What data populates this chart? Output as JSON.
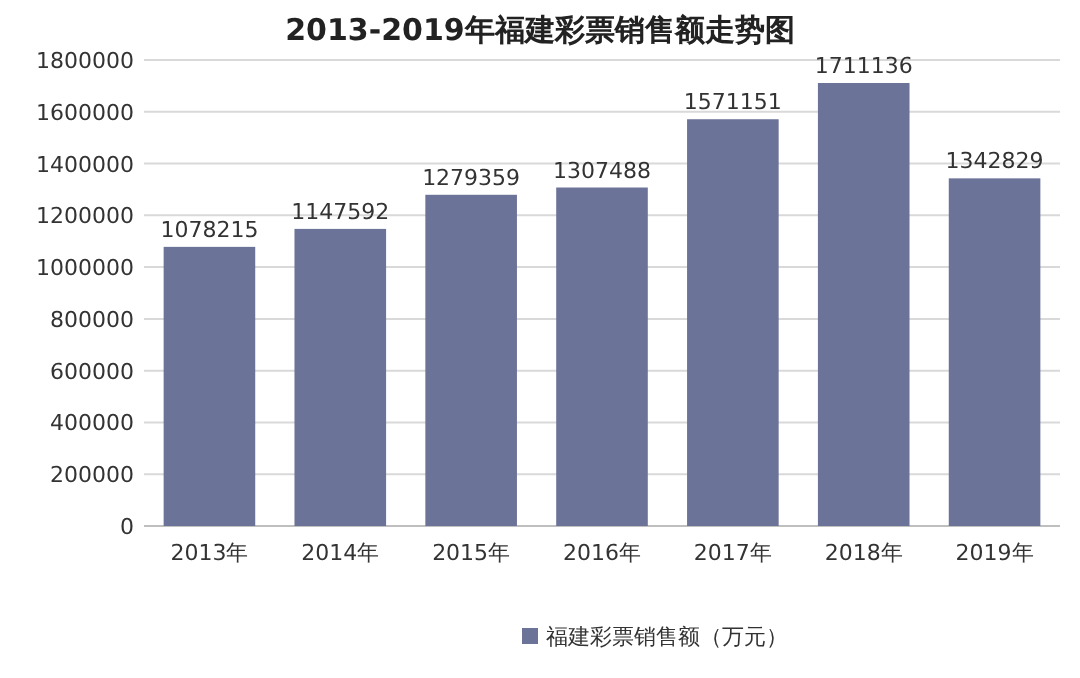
{
  "chart_data": {
    "type": "bar",
    "title": "2013-2019年福建彩票销售额走势图",
    "categories": [
      "2013年",
      "2014年",
      "2015年",
      "2016年",
      "2017年",
      "2018年",
      "2019年"
    ],
    "series": [
      {
        "name": "福建彩票销售额（万元）",
        "color": "#6b7398",
        "values": [
          1078215,
          1147592,
          1279359,
          1307488,
          1571151,
          1711136,
          1342829
        ]
      }
    ],
    "ylim": [
      0,
      1800000
    ],
    "yticks": [
      0,
      200000,
      400000,
      600000,
      800000,
      1000000,
      1200000,
      1400000,
      1600000,
      1800000
    ],
    "grid": "y",
    "legend": "bottom",
    "data_labels": true
  }
}
